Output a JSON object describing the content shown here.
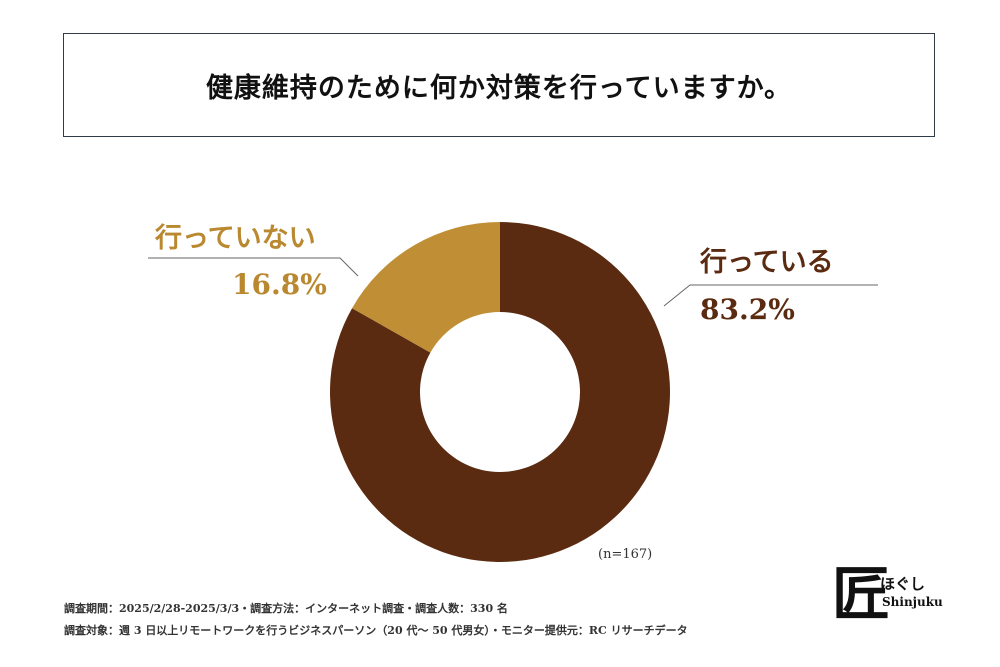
{
  "title": "健康維持のために何か対策を行っていますか。",
  "chart_data": {
    "type": "pie",
    "donut": true,
    "categories": [
      "行っている",
      "行っていない"
    ],
    "values": [
      83.2,
      16.8
    ],
    "value_labels": [
      "83.2%",
      "16.8%"
    ],
    "colors": [
      "#5a2b10",
      "#c08f35"
    ],
    "sample_note": "(n=167)"
  },
  "footer": {
    "line1": "調査期間：2025/2/28-2025/3/3・調査方法：インターネット調査・調査人数：330 名",
    "line2": "調査対象：週 3 日以上リモートワークを行うビジネスパーソン（20 代〜 50 代男女）・モニター提供元：RC リサーチデータ"
  },
  "logo": {
    "mark": "匠",
    "kana": "ほぐし",
    "en": "Shinjuku"
  }
}
